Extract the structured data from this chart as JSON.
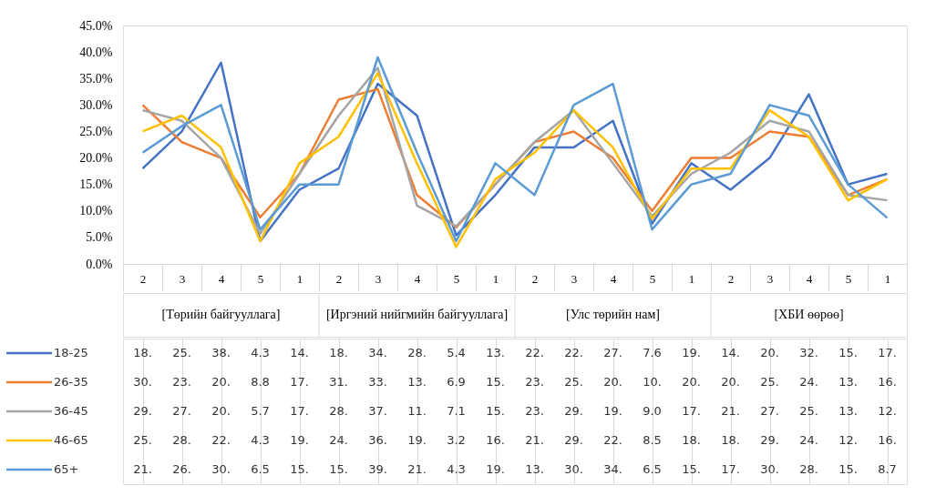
{
  "chart_data": {
    "type": "line",
    "categories": [
      "2",
      "3",
      "4",
      "5",
      "1",
      "2",
      "3",
      "4",
      "5",
      "1",
      "2",
      "3",
      "4",
      "5",
      "1",
      "2",
      "3",
      "4",
      "5",
      "1"
    ],
    "annotations": [
      "[Төрийн байгууллага]",
      "[Иргэний нийгмийн байгууллага]",
      "[Улс төрийн нам]",
      "[ХБИ өөрөө]"
    ],
    "ylim": [
      0,
      45
    ],
    "yticks": [
      {
        "value": 0,
        "label": "0.0%"
      },
      {
        "value": 5,
        "label": "5.0%"
      },
      {
        "value": 10,
        "label": "10.0%"
      },
      {
        "value": 15,
        "label": "15.0%"
      },
      {
        "value": 20,
        "label": "20.0%"
      },
      {
        "value": 25,
        "label": "25.0%"
      },
      {
        "value": 30,
        "label": "30.0%"
      },
      {
        "value": 35,
        "label": "35.0%"
      },
      {
        "value": 40,
        "label": "40.0%"
      },
      {
        "value": 45,
        "label": "45.0%"
      }
    ],
    "grid": false,
    "legend": "bottom",
    "marker": "none",
    "line_style": "solid",
    "series": [
      {
        "name": "18-25",
        "color": "#4472c4",
        "values": [
          18,
          25,
          38,
          4.3,
          14,
          18,
          34,
          28,
          5.4,
          13,
          22,
          22,
          27,
          7.6,
          19,
          14,
          20,
          32,
          15,
          17
        ],
        "value_labels": [
          "18.",
          "25.",
          "38.",
          "4.3",
          "14.",
          "18.",
          "34.",
          "28.",
          "5.4",
          "13.",
          "22.",
          "22.",
          "27.",
          "7.6",
          "19.",
          "14.",
          "20.",
          "32.",
          "15.",
          "17."
        ]
      },
      {
        "name": "26-35",
        "color": "#ed7d31",
        "values": [
          30,
          23,
          20,
          8.8,
          17,
          31,
          33,
          13,
          6.9,
          15,
          23,
          25,
          20,
          10,
          20,
          20,
          25,
          24,
          13,
          16
        ],
        "value_labels": [
          "30.",
          "23.",
          "20.",
          "8.8",
          "17.",
          "31.",
          "33.",
          "13.",
          "6.9",
          "15.",
          "23.",
          "25.",
          "20.",
          "10.",
          "20.",
          "20.",
          "25.",
          "24.",
          "13.",
          "16."
        ]
      },
      {
        "name": "36-45",
        "color": "#a5a5a5",
        "values": [
          29,
          27,
          20,
          5.7,
          17,
          28,
          37,
          11,
          7.1,
          15,
          23,
          29,
          19,
          9.0,
          17,
          21,
          27,
          25,
          13,
          12
        ],
        "value_labels": [
          "29.",
          "27.",
          "20.",
          "5.7",
          "17.",
          "28.",
          "37.",
          "11.",
          "7.1",
          "15.",
          "23.",
          "29.",
          "19.",
          "9.0",
          "17.",
          "21.",
          "27.",
          "25.",
          "13.",
          "12."
        ]
      },
      {
        "name": "46-65",
        "color": "#ffc000",
        "values": [
          25,
          28,
          22,
          4.3,
          19,
          24,
          36,
          19,
          3.2,
          16,
          21,
          29,
          22,
          8.5,
          18,
          18,
          29,
          24,
          12,
          16
        ],
        "value_labels": [
          "25.",
          "28.",
          "22.",
          "4.3",
          "19.",
          "24.",
          "36.",
          "19.",
          "3.2",
          "16.",
          "21.",
          "29.",
          "22.",
          "8.5",
          "18.",
          "18.",
          "29.",
          "24.",
          "12.",
          "16."
        ]
      },
      {
        "name": "65+",
        "color": "#5b9bd5",
        "values": [
          21,
          26,
          30,
          6.5,
          15,
          15,
          39,
          21,
          4.3,
          19,
          13,
          30,
          34,
          6.5,
          15,
          17,
          30,
          28,
          15,
          8.7
        ],
        "value_labels": [
          "21.",
          "26.",
          "30.",
          "6.5",
          "15.",
          "15.",
          "39.",
          "21.",
          "4.3",
          "19.",
          "13.",
          "30.",
          "34.",
          "6.5",
          "15.",
          "17.",
          "30.",
          "28.",
          "15.",
          "8.7"
        ]
      }
    ]
  }
}
